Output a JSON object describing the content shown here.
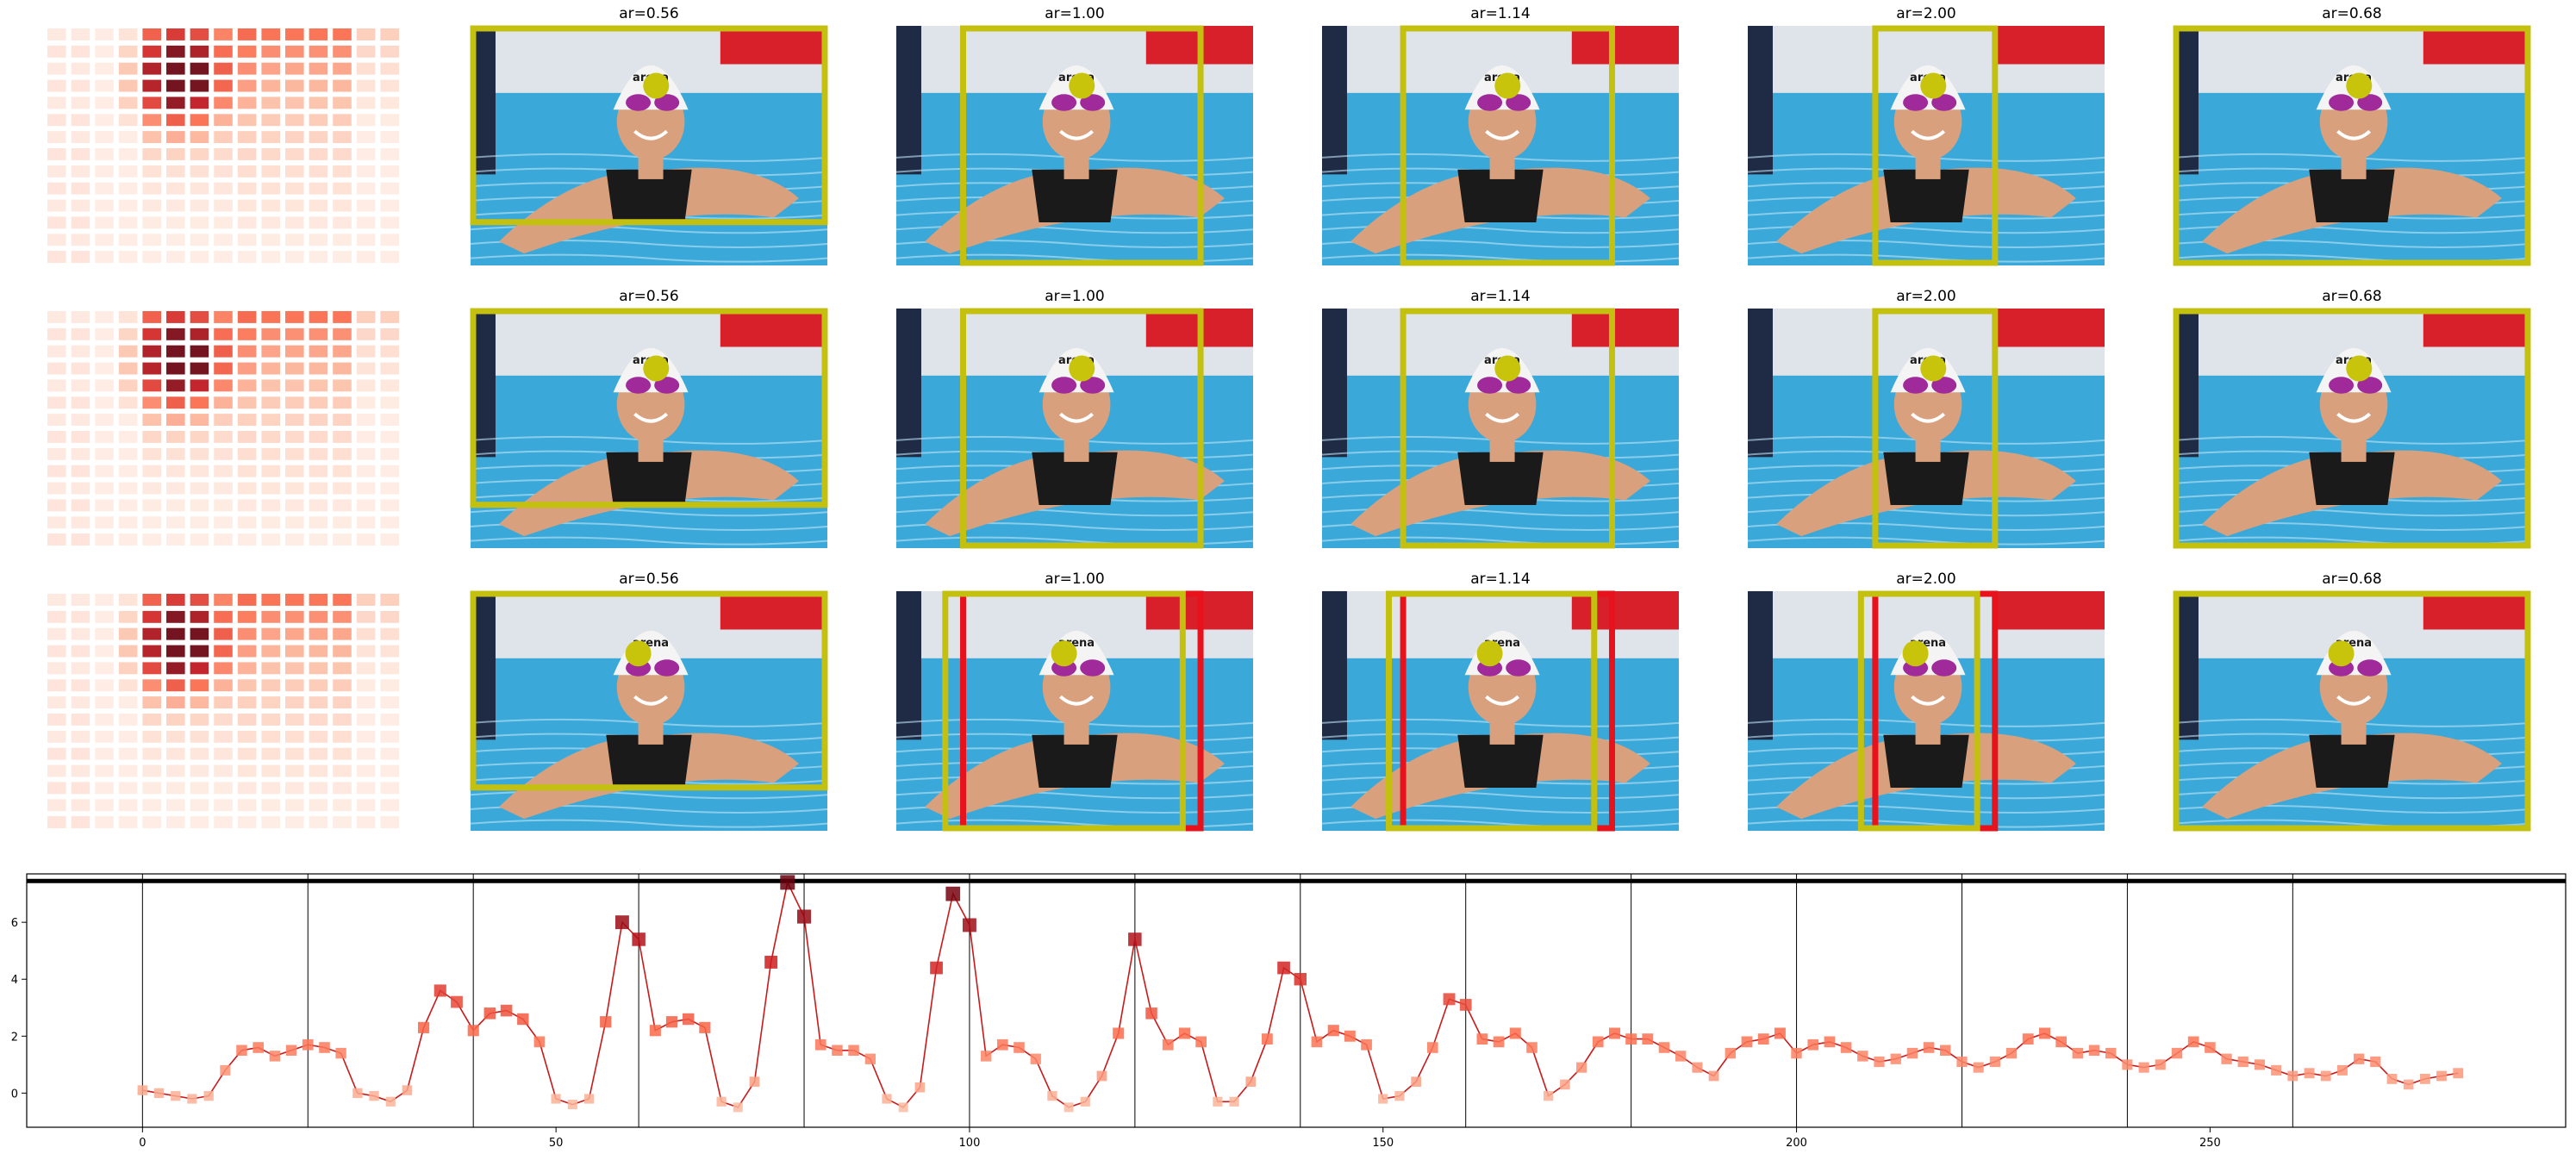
{
  "grid": {
    "panel_titles": [
      "ar=0.56",
      "ar=1.00",
      "ar=1.14",
      "ar=2.00",
      "ar=0.68"
    ],
    "rows": 3,
    "photo_caption": "arena",
    "colors": {
      "box": "#c4c010",
      "alt_box": "#e8121c",
      "dot": "#c8c40c",
      "water": "#3aa9d9",
      "banner": "#d8202a",
      "cap": "#f4f4f4",
      "goggles": "#a02a9a",
      "skin": "#d9a07e",
      "suit": "#1a1a1a",
      "wall": "#1f2a44"
    }
  },
  "chart_data": {
    "type": "line",
    "xlim": [
      -14,
      293
    ],
    "ylim": [
      -1.2,
      7.7
    ],
    "x_ticks": [
      0,
      50,
      100,
      150,
      200,
      250
    ],
    "y_ticks": [
      0,
      2,
      4,
      6
    ],
    "threshold_y": 7.45,
    "vlines": [
      0,
      20,
      40,
      60,
      80,
      100,
      120,
      140,
      160,
      180,
      200,
      220,
      240,
      260
    ],
    "grid": false,
    "series": [
      {
        "x": [
          0,
          2,
          4,
          6,
          8,
          10,
          12,
          14,
          16,
          18,
          20,
          22,
          24,
          26,
          28,
          30,
          32,
          34,
          36,
          38,
          40,
          42,
          44,
          46,
          48,
          50,
          52,
          54,
          56,
          58,
          60,
          62,
          64,
          66,
          68,
          70,
          72,
          74,
          76,
          78,
          80,
          82,
          84,
          86,
          88,
          90,
          92,
          94,
          96,
          98,
          100,
          102,
          104,
          106,
          108,
          110,
          112,
          114,
          116,
          118,
          120,
          122,
          124,
          126,
          128,
          130,
          132,
          134,
          136,
          138,
          140,
          142,
          144,
          146,
          148,
          150,
          152,
          154,
          156,
          158,
          160,
          162,
          164,
          166,
          168,
          170,
          172,
          174,
          176,
          178,
          180,
          182,
          184,
          186,
          188,
          190,
          192,
          194,
          196,
          198,
          200,
          202,
          204,
          206,
          208,
          210,
          212,
          214,
          216,
          218,
          220,
          222,
          224,
          226,
          228,
          230,
          232,
          234,
          236,
          238,
          240,
          242,
          244,
          246,
          248,
          250,
          252,
          254,
          256,
          258,
          260,
          262,
          264,
          266,
          268,
          270,
          272,
          274,
          276,
          278,
          280
        ],
        "y": [
          0.1,
          0.0,
          -0.1,
          -0.2,
          -0.1,
          0.8,
          1.5,
          1.6,
          1.3,
          1.5,
          1.7,
          1.6,
          1.4,
          0.0,
          -0.1,
          -0.3,
          0.1,
          2.3,
          3.6,
          3.2,
          2.2,
          2.8,
          2.9,
          2.6,
          1.8,
          -0.2,
          -0.4,
          -0.2,
          2.5,
          6.0,
          5.4,
          2.2,
          2.5,
          2.6,
          2.3,
          -0.3,
          -0.5,
          0.4,
          4.6,
          7.4,
          6.2,
          1.7,
          1.5,
          1.5,
          1.2,
          -0.2,
          -0.5,
          0.2,
          4.4,
          7.0,
          5.9,
          1.3,
          1.7,
          1.6,
          1.2,
          -0.1,
          -0.5,
          -0.3,
          0.6,
          2.1,
          5.4,
          2.8,
          1.7,
          2.1,
          1.8,
          -0.3,
          -0.3,
          0.4,
          1.9,
          4.4,
          4.0,
          1.8,
          2.2,
          2.0,
          1.7,
          -0.2,
          -0.1,
          0.4,
          1.6,
          3.3,
          3.1,
          1.9,
          1.8,
          2.1,
          1.6,
          -0.1,
          0.3,
          0.9,
          1.8,
          2.1,
          1.9,
          1.9,
          1.6,
          1.3,
          0.9,
          0.6,
          1.4,
          1.8,
          1.9,
          2.1,
          1.4,
          1.7,
          1.8,
          1.6,
          1.3,
          1.1,
          1.2,
          1.4,
          1.6,
          1.5,
          1.1,
          0.9,
          1.1,
          1.4,
          1.9,
          2.1,
          1.8,
          1.4,
          1.5,
          1.4,
          1.0,
          0.9,
          1.0,
          1.4,
          1.8,
          1.6,
          1.2,
          1.1,
          1.0,
          0.8,
          0.6,
          0.7,
          0.6,
          0.8,
          1.2,
          1.1,
          0.5,
          0.3,
          0.5,
          0.6,
          0.7
        ],
        "line_color": "#c81a1a",
        "marker": "square"
      }
    ]
  }
}
